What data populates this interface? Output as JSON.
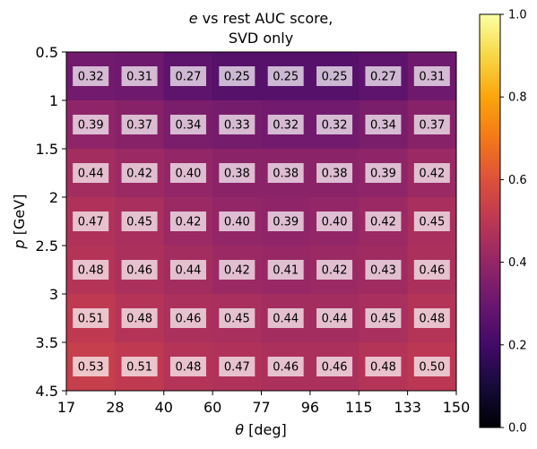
{
  "chart_data": {
    "type": "heatmap",
    "title_var": "e",
    "title_rest": " vs rest AUC score,",
    "title_line2": "SVD only",
    "xlabel_var": "θ",
    "xlabel_unit": " [deg]",
    "ylabel_var": "p",
    "ylabel_unit": " [GeV]",
    "x_ticks": [
      "17",
      "28",
      "40",
      "60",
      "77",
      "96",
      "115",
      "133",
      "150"
    ],
    "y_ticks": [
      "0.5",
      "1",
      "1.5",
      "2",
      "2.5",
      "3",
      "3.5",
      "4.5"
    ],
    "colorbar_ticks": [
      "0.0",
      "0.2",
      "0.4",
      "0.6",
      "0.8",
      "1.0"
    ],
    "colormap": "inferno",
    "vmin": 0.0,
    "vmax": 1.0,
    "values": [
      [
        0.32,
        0.31,
        0.27,
        0.25,
        0.25,
        0.25,
        0.27,
        0.31
      ],
      [
        0.39,
        0.37,
        0.34,
        0.33,
        0.32,
        0.32,
        0.34,
        0.37
      ],
      [
        0.44,
        0.42,
        0.4,
        0.38,
        0.38,
        0.38,
        0.39,
        0.42
      ],
      [
        0.47,
        0.45,
        0.42,
        0.4,
        0.39,
        0.4,
        0.42,
        0.45
      ],
      [
        0.48,
        0.46,
        0.44,
        0.42,
        0.41,
        0.42,
        0.43,
        0.46
      ],
      [
        0.51,
        0.48,
        0.46,
        0.45,
        0.44,
        0.44,
        0.45,
        0.48
      ],
      [
        0.53,
        0.51,
        0.48,
        0.47,
        0.46,
        0.46,
        0.48,
        0.5
      ]
    ],
    "value_labels": [
      [
        "0.32",
        "0.31",
        "0.27",
        "0.25",
        "0.25",
        "0.25",
        "0.27",
        "0.31"
      ],
      [
        "0.39",
        "0.37",
        "0.34",
        "0.33",
        "0.32",
        "0.32",
        "0.34",
        "0.37"
      ],
      [
        "0.44",
        "0.42",
        "0.40",
        "0.38",
        "0.38",
        "0.38",
        "0.39",
        "0.42"
      ],
      [
        "0.47",
        "0.45",
        "0.42",
        "0.40",
        "0.39",
        "0.40",
        "0.42",
        "0.45"
      ],
      [
        "0.48",
        "0.46",
        "0.44",
        "0.42",
        "0.41",
        "0.42",
        "0.43",
        "0.46"
      ],
      [
        "0.51",
        "0.48",
        "0.46",
        "0.45",
        "0.44",
        "0.44",
        "0.45",
        "0.48"
      ],
      [
        "0.53",
        "0.51",
        "0.48",
        "0.47",
        "0.46",
        "0.46",
        "0.48",
        "0.50"
      ]
    ]
  }
}
